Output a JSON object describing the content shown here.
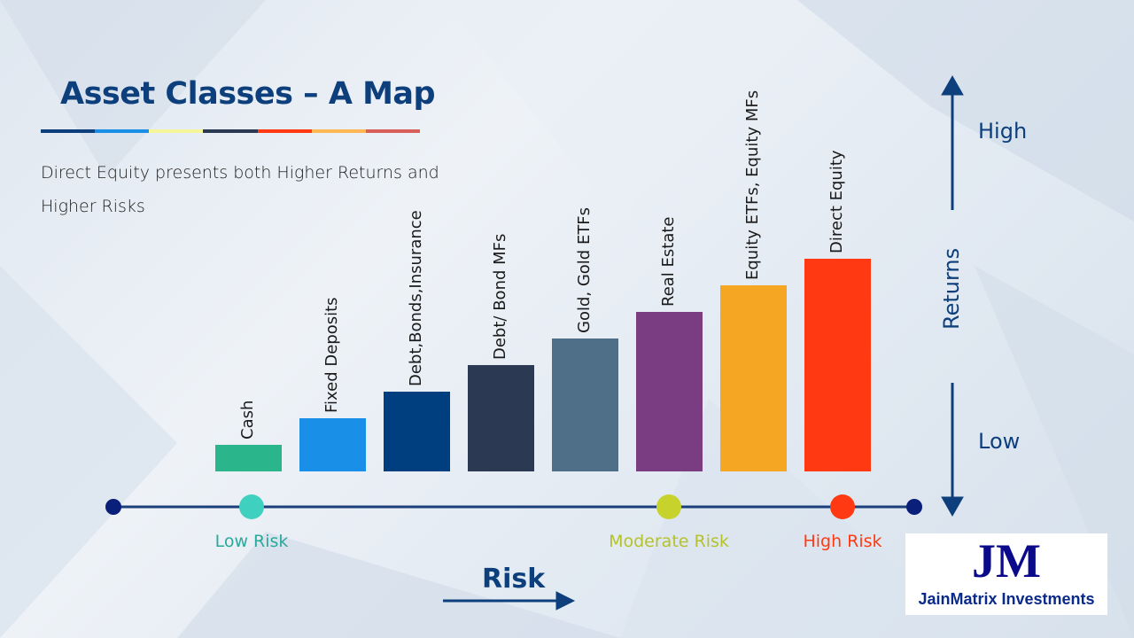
{
  "title": "Asset Classes – A Map",
  "title_stripe_colors": [
    "#0d3f7c",
    "#1a8fe8",
    "#f5f59a",
    "#2b3a52",
    "#ff3a12",
    "#ffb755",
    "#d9605a"
  ],
  "subtitle": "Direct Equity presents both Higher Returns and Higher Risks",
  "chart_data": {
    "type": "bar",
    "categories": [
      "Cash",
      "Fixed Deposits",
      "Debt,Bonds,Insurance",
      "Debt/ Bond MFs",
      "Gold, Gold ETFs",
      "Real Estate",
      "Equity ETFs, Equity MFs",
      "Direct Equity"
    ],
    "values": [
      1,
      2,
      3,
      4,
      5,
      6,
      7,
      8
    ],
    "colors": [
      "#2bb58a",
      "#1a8fe8",
      "#003f7f",
      "#2b3a52",
      "#4f6e88",
      "#7a3d82",
      "#f5a623",
      "#ff3a12"
    ],
    "xlabel": "Risk",
    "ylabel": "Returns"
  },
  "risk_axis": {
    "label": "Risk",
    "markers": [
      {
        "label": "Low Risk",
        "color": "#3fd0c0",
        "text_color": "#2aa89a"
      },
      {
        "label": "Moderate Risk",
        "color": "#c8d22c",
        "text_color": "#b5c22a"
      },
      {
        "label": "High Risk",
        "color": "#ff3a12",
        "text_color": "#ff3a12"
      }
    ]
  },
  "returns_axis": {
    "label": "Returns",
    "high": "High",
    "low": "Low"
  },
  "logo": {
    "mark": "JM",
    "name": "JainMatrix Investments"
  }
}
